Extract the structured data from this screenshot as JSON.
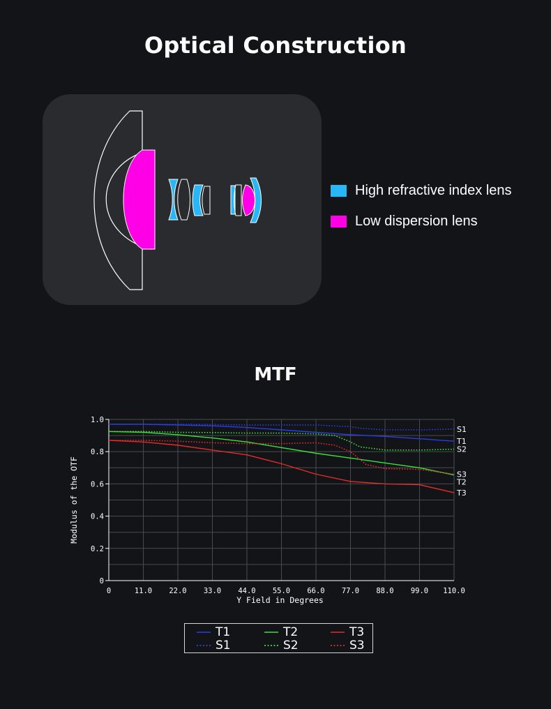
{
  "header": {
    "title": "Optical Construction"
  },
  "lens_legend": {
    "items": [
      {
        "label": "High refractive index lens",
        "color": "#29b6f6"
      },
      {
        "label": "Low dispersion lens",
        "color": "#ff00e6"
      }
    ]
  },
  "mtf": {
    "title": "MTF"
  },
  "chart_data": {
    "type": "line",
    "xlabel": "Y Field in Degrees",
    "ylabel": "Modulus of the OTF",
    "xlim": [
      0,
      110
    ],
    "ylim": [
      0,
      1
    ],
    "x_ticks": [
      "0",
      "11.0",
      "22.0",
      "33.0",
      "44.0",
      "55.0",
      "66.0",
      "77.0",
      "88.0",
      "99.0",
      "110.0"
    ],
    "y_ticks": [
      "0",
      "0.2",
      "0.4",
      "0.6",
      "0.8",
      "1.0"
    ],
    "grid": true,
    "legend_position": "bottom",
    "series": [
      {
        "name": "T1",
        "color": "#2b3fe0",
        "style": "solid",
        "x": [
          0,
          11,
          22,
          33,
          44,
          55,
          66,
          77,
          88,
          99,
          110
        ],
        "y": [
          0.97,
          0.97,
          0.965,
          0.96,
          0.95,
          0.935,
          0.92,
          0.905,
          0.895,
          0.88,
          0.865
        ]
      },
      {
        "name": "S1",
        "color": "#2b3fe0",
        "style": "dotted",
        "x": [
          0,
          11,
          22,
          33,
          44,
          55,
          66,
          77,
          80,
          88,
          99,
          110
        ],
        "y": [
          0.97,
          0.97,
          0.97,
          0.968,
          0.965,
          0.965,
          0.965,
          0.955,
          0.945,
          0.935,
          0.935,
          0.94
        ]
      },
      {
        "name": "T2",
        "color": "#3de03a",
        "style": "solid",
        "x": [
          0,
          11,
          22,
          33,
          44,
          55,
          66,
          77,
          88,
          99,
          110
        ],
        "y": [
          0.925,
          0.92,
          0.905,
          0.885,
          0.86,
          0.825,
          0.79,
          0.76,
          0.73,
          0.7,
          0.655
        ]
      },
      {
        "name": "S2",
        "color": "#3de03a",
        "style": "dotted",
        "x": [
          0,
          11,
          22,
          33,
          44,
          55,
          66,
          72,
          77,
          80,
          88,
          99,
          110
        ],
        "y": [
          0.925,
          0.925,
          0.92,
          0.918,
          0.915,
          0.915,
          0.91,
          0.9,
          0.86,
          0.83,
          0.81,
          0.81,
          0.815
        ]
      },
      {
        "name": "T3",
        "color": "#e62b2b",
        "style": "solid",
        "x": [
          0,
          11,
          22,
          33,
          44,
          55,
          66,
          77,
          88,
          99,
          110
        ],
        "y": [
          0.87,
          0.86,
          0.84,
          0.81,
          0.78,
          0.725,
          0.66,
          0.615,
          0.6,
          0.595,
          0.545
        ]
      },
      {
        "name": "S3",
        "color": "#e62b2b",
        "style": "dotted",
        "x": [
          0,
          11,
          22,
          33,
          44,
          55,
          66,
          72,
          77,
          82,
          88,
          99,
          110
        ],
        "y": [
          0.87,
          0.87,
          0.865,
          0.855,
          0.85,
          0.85,
          0.855,
          0.84,
          0.8,
          0.72,
          0.695,
          0.69,
          0.66
        ]
      }
    ],
    "end_labels": [
      "S1",
      "T1",
      "S2",
      "T2",
      "S3",
      "T3"
    ]
  }
}
